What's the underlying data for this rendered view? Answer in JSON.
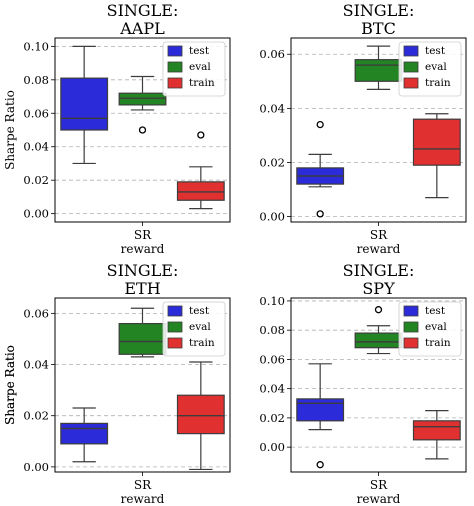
{
  "chart_data": [
    {
      "type": "box",
      "title": [
        "SINGLE:",
        "AAPL"
      ],
      "ylabel": "Sharpe Ratio",
      "xticklabel": [
        "SR",
        "reward"
      ],
      "ylim": [
        -0.005,
        0.105
      ],
      "yticks": [
        0.0,
        0.02,
        0.04,
        0.06,
        0.08,
        0.1
      ],
      "ytick_labels": [
        "0.00",
        "0.02",
        "0.04",
        "0.06",
        "0.08",
        "0.10"
      ],
      "grid": "y-dashed",
      "legend_position": "top-right",
      "legend": [
        "test",
        "eval",
        "train"
      ],
      "series": [
        {
          "name": "test",
          "color": "#2b2bd9",
          "whisker_low": 0.03,
          "q1": 0.05,
          "median": 0.057,
          "q3": 0.081,
          "whisker_high": 0.1,
          "outliers": []
        },
        {
          "name": "eval",
          "color": "#238423",
          "whisker_low": 0.062,
          "q1": 0.065,
          "median": 0.069,
          "q3": 0.072,
          "whisker_high": 0.082,
          "outliers": [
            0.05
          ]
        },
        {
          "name": "train",
          "color": "#e03030",
          "whisker_low": 0.003,
          "q1": 0.008,
          "median": 0.013,
          "q3": 0.019,
          "whisker_high": 0.028,
          "outliers": [
            0.047
          ]
        }
      ]
    },
    {
      "type": "box",
      "title": [
        "SINGLE:",
        "BTC"
      ],
      "ylabel": "",
      "xticklabel": [
        "SR",
        "reward"
      ],
      "ylim": [
        -0.002,
        0.066
      ],
      "yticks": [
        0.0,
        0.02,
        0.04,
        0.06
      ],
      "ytick_labels": [
        "0.00",
        "0.02",
        "0.04",
        "0.06"
      ],
      "grid": "y-dashed",
      "legend_position": "top-right",
      "legend": [
        "test",
        "eval",
        "train"
      ],
      "series": [
        {
          "name": "test",
          "color": "#2b2bd9",
          "whisker_low": 0.011,
          "q1": 0.012,
          "median": 0.015,
          "q3": 0.018,
          "whisker_high": 0.023,
          "outliers": [
            0.034,
            0.001
          ]
        },
        {
          "name": "eval",
          "color": "#238423",
          "whisker_low": 0.047,
          "q1": 0.05,
          "median": 0.056,
          "q3": 0.058,
          "whisker_high": 0.063,
          "outliers": []
        },
        {
          "name": "train",
          "color": "#e03030",
          "whisker_low": 0.007,
          "q1": 0.019,
          "median": 0.025,
          "q3": 0.036,
          "whisker_high": 0.038,
          "outliers": []
        }
      ]
    },
    {
      "type": "box",
      "title": [
        "SINGLE:",
        "ETH"
      ],
      "ylabel": "Sharpe Ratio",
      "xticklabel": [
        "SR",
        "reward"
      ],
      "ylim": [
        -0.002,
        0.066
      ],
      "yticks": [
        0.0,
        0.02,
        0.04,
        0.06
      ],
      "ytick_labels": [
        "0.00",
        "0.02",
        "0.04",
        "0.06"
      ],
      "grid": "y-dashed",
      "legend_position": "top-right",
      "legend": [
        "test",
        "eval",
        "train"
      ],
      "series": [
        {
          "name": "test",
          "color": "#2b2bd9",
          "whisker_low": 0.002,
          "q1": 0.009,
          "median": 0.015,
          "q3": 0.017,
          "whisker_high": 0.023,
          "outliers": []
        },
        {
          "name": "eval",
          "color": "#238423",
          "whisker_low": 0.043,
          "q1": 0.044,
          "median": 0.049,
          "q3": 0.056,
          "whisker_high": 0.062,
          "outliers": []
        },
        {
          "name": "train",
          "color": "#e03030",
          "whisker_low": -0.001,
          "q1": 0.013,
          "median": 0.02,
          "q3": 0.028,
          "whisker_high": 0.041,
          "outliers": []
        }
      ]
    },
    {
      "type": "box",
      "title": [
        "SINGLE:",
        "SPY"
      ],
      "ylabel": "Sharpe Ratio",
      "xticklabel": [
        "SR",
        "reward"
      ],
      "ylim": [
        -0.017,
        0.102
      ],
      "yticks": [
        0.0,
        0.02,
        0.04,
        0.06,
        0.08,
        0.1
      ],
      "ytick_labels": [
        "0.00",
        "0.02",
        "0.04",
        "0.06",
        "0.08",
        "0.10"
      ],
      "grid": "y-dashed",
      "legend_position": "top-right",
      "legend": [
        "test",
        "eval",
        "train"
      ],
      "series": [
        {
          "name": "test",
          "color": "#2b2bd9",
          "whisker_low": 0.012,
          "q1": 0.018,
          "median": 0.03,
          "q3": 0.033,
          "whisker_high": 0.057,
          "outliers": [
            -0.012
          ]
        },
        {
          "name": "eval",
          "color": "#238423",
          "whisker_low": 0.064,
          "q1": 0.068,
          "median": 0.072,
          "q3": 0.078,
          "whisker_high": 0.083,
          "outliers": [
            0.094
          ]
        },
        {
          "name": "train",
          "color": "#e03030",
          "whisker_low": -0.008,
          "q1": 0.005,
          "median": 0.014,
          "q3": 0.018,
          "whisker_high": 0.025,
          "outliers": []
        }
      ]
    }
  ]
}
